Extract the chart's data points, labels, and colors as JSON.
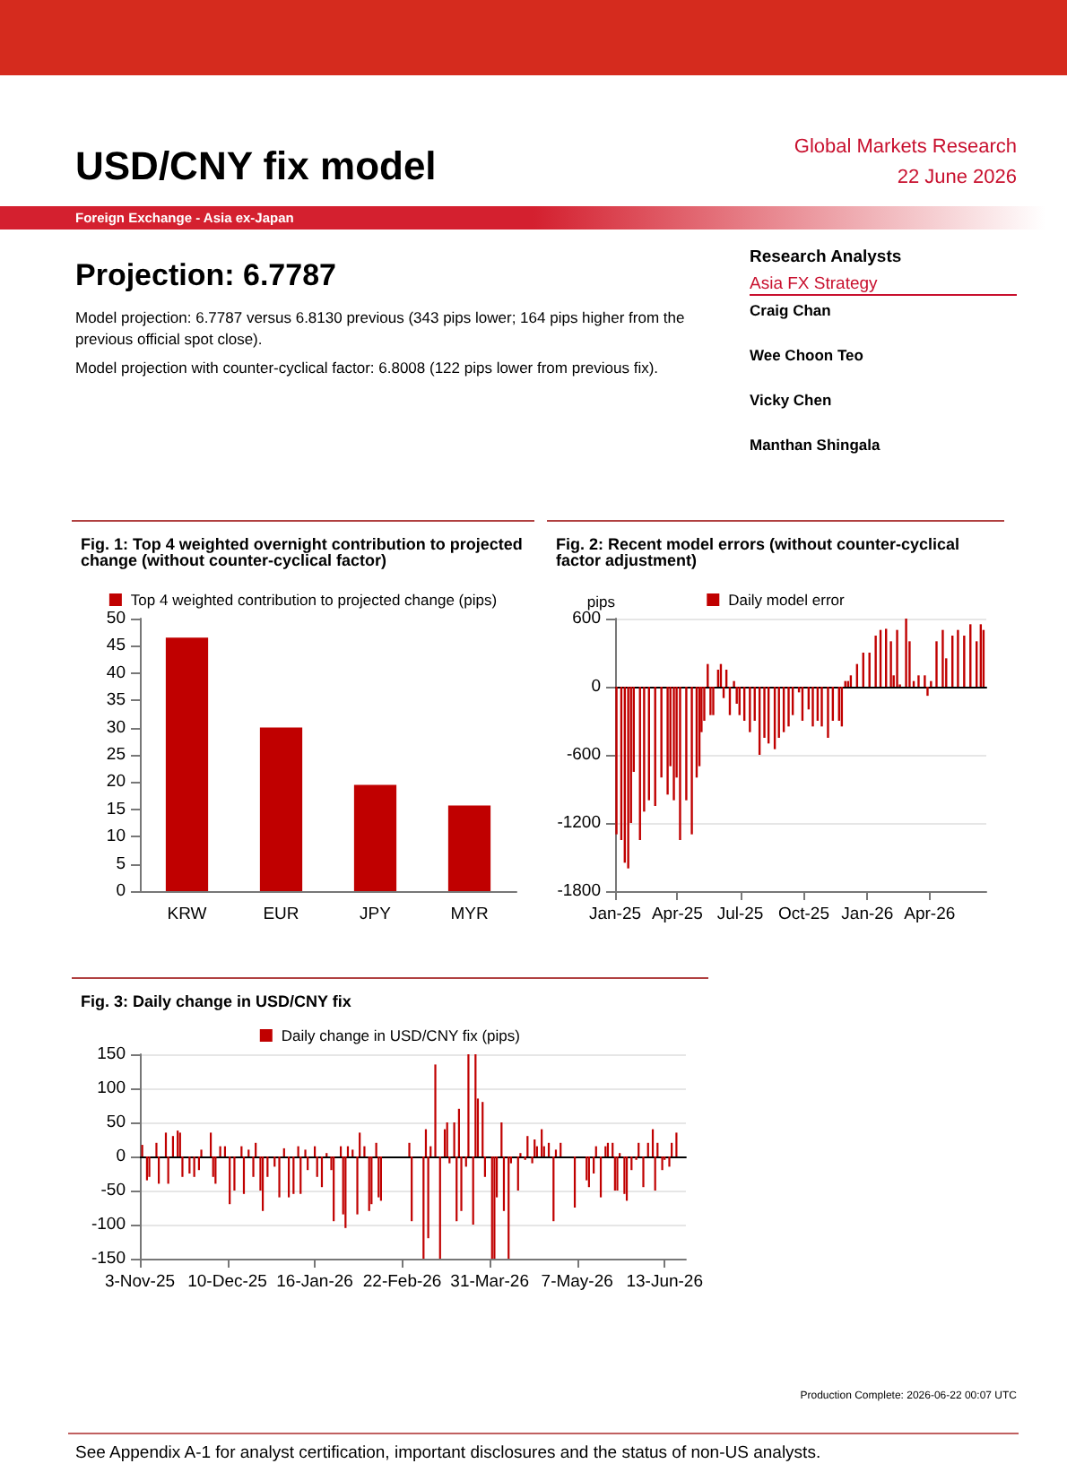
{
  "chart_data": [
    {
      "type": "other",
      "title": "USD/CNY fix model",
      "annotations": [
        "Global Markets Research",
        "22 June 2026",
        "Foreign Exchange - Asia ex-Japan",
        "Projection: 6.7787",
        "Model projection: 6.7787 versus 6.8130 previous (343 pips lower; 164 pips higher from the previous official spot close).",
        "Model projection with counter-cyclical factor: 6.8008 (122 pips lower from previous fix).",
        "Research Analysts",
        "Asia FX Strategy",
        "Craig Chan",
        "Wee Choon Teo",
        "Vicky Chen",
        "Manthan Shingala",
        "Production Complete: 2026-06-22 00:07 UTC",
        "See Appendix A-1 for analyst certification, important disclosures and the status of non-US analysts."
      ]
    },
    {
      "type": "bar",
      "title": "Fig. 1: Top 4 weighted overnight contribution to projected change (without counter-cyclical factor)",
      "categories": [
        "KRW",
        "EUR",
        "JPY",
        "MYR"
      ],
      "series": [
        {
          "name": "Top 4 weighted contribution to projected change (pips)",
          "color": "#c00000",
          "values": [
            46.5,
            30,
            19.5,
            15.7
          ]
        }
      ],
      "ylim": [
        0,
        50
      ],
      "yticks": [
        0,
        5,
        10,
        15,
        20,
        25,
        30,
        35,
        40,
        45,
        50
      ],
      "grid": false,
      "legend": "top"
    },
    {
      "type": "bar",
      "title": "Fig. 2: Recent model errors (without counter-cyclical factor adjustment)",
      "ylabel": "pips",
      "x": [
        "2025-01-03",
        "2025-01-10",
        "2025-01-15",
        "2025-01-20",
        "2025-01-24",
        "2025-01-28",
        "2025-02-06",
        "2025-02-12",
        "2025-02-19",
        "2025-02-28",
        "2025-03-09",
        "2025-03-18",
        "2025-03-22",
        "2025-03-27",
        "2025-03-31",
        "2025-04-05",
        "2025-04-14",
        "2025-04-22",
        "2025-04-29",
        "2025-05-03",
        "2025-05-06",
        "2025-05-10",
        "2025-05-15",
        "2025-05-19",
        "2025-05-23",
        "2025-05-30",
        "2025-06-03",
        "2025-06-07",
        "2025-06-11",
        "2025-06-16",
        "2025-06-22",
        "2025-06-26",
        "2025-06-30",
        "2025-07-07",
        "2025-07-15",
        "2025-07-22",
        "2025-07-29",
        "2025-08-05",
        "2025-08-11",
        "2025-08-20",
        "2025-08-26",
        "2025-09-02",
        "2025-09-09",
        "2025-09-15",
        "2025-09-24",
        "2025-09-29",
        "2025-10-08",
        "2025-10-14",
        "2025-10-21",
        "2025-10-27",
        "2025-11-05",
        "2025-11-12",
        "2025-11-21",
        "2025-11-25",
        "2025-11-30",
        "2025-12-04",
        "2025-12-08",
        "2025-12-17",
        "2025-12-26",
        "2026-01-04",
        "2026-01-13",
        "2026-01-20",
        "2026-01-28",
        "2026-02-04",
        "2026-02-08",
        "2026-02-13",
        "2026-02-17",
        "2026-02-26",
        "2026-03-03",
        "2026-03-09",
        "2026-03-16",
        "2026-03-25",
        "2026-03-29",
        "2026-04-03",
        "2026-04-11",
        "2026-04-20",
        "2026-04-25",
        "2026-05-04",
        "2026-05-12",
        "2026-05-21",
        "2026-05-30",
        "2026-06-08",
        "2026-06-14",
        "2026-06-18"
      ],
      "series": [
        {
          "name": "Daily model error",
          "color": "#c00000",
          "values": [
            -1300,
            -1350,
            -1550,
            -1600,
            -1200,
            -750,
            -1350,
            -1100,
            -1000,
            -1050,
            -800,
            -950,
            -700,
            -1000,
            -800,
            -1350,
            -1000,
            -1300,
            -800,
            -700,
            -400,
            -300,
            200,
            -250,
            -250,
            150,
            200,
            -100,
            150,
            -250,
            50,
            -150,
            -250,
            -300,
            -400,
            -300,
            -600,
            -450,
            -500,
            -550,
            -450,
            -400,
            -350,
            -250,
            -50,
            -300,
            -200,
            -350,
            -300,
            -350,
            -450,
            -300,
            -300,
            -350,
            50,
            50,
            100,
            200,
            300,
            300,
            450,
            500,
            510,
            400,
            100,
            500,
            20,
            600,
            400,
            50,
            100,
            100,
            -80,
            50,
            400,
            500,
            250,
            450,
            500,
            450,
            550,
            400,
            550,
            500
          ]
        }
      ],
      "xlim": [
        "2025-01-01",
        "2026-06-22"
      ],
      "xticks": [
        {
          "value": "2025-01-01",
          "label": "Jan-25"
        },
        {
          "value": "2025-04-01",
          "label": "Apr-25"
        },
        {
          "value": "2025-07-01",
          "label": "Jul-25"
        },
        {
          "value": "2025-10-01",
          "label": "Oct-25"
        },
        {
          "value": "2026-01-01",
          "label": "Jan-26"
        },
        {
          "value": "2026-04-01",
          "label": "Apr-26"
        }
      ],
      "ylim": [
        -1800,
        600
      ],
      "yticks": [
        -1800,
        -1200,
        -600,
        0,
        600
      ],
      "grid": "y",
      "legend": "top"
    },
    {
      "type": "bar",
      "title": "Fig. 3: Daily change in USD/CNY fix",
      "x": [
        "2025-11-04",
        "2025-11-06",
        "2025-11-07",
        "2025-11-10",
        "2025-11-11",
        "2025-11-14",
        "2025-11-15",
        "2025-11-17",
        "2025-11-19",
        "2025-11-20",
        "2025-11-21",
        "2025-11-24",
        "2025-11-26",
        "2025-11-28",
        "2025-11-29",
        "2025-12-03",
        "2025-12-04",
        "2025-12-05",
        "2025-12-07",
        "2025-12-09",
        "2025-12-11",
        "2025-12-13",
        "2025-12-16",
        "2025-12-17",
        "2025-12-19",
        "2025-12-21",
        "2025-12-22",
        "2025-12-24",
        "2025-12-25",
        "2025-12-27",
        "2025-12-30",
        "2026-01-01",
        "2026-01-03",
        "2026-01-05",
        "2026-01-07",
        "2026-01-09",
        "2026-01-10",
        "2026-01-12",
        "2026-01-13",
        "2026-01-16",
        "2026-01-17",
        "2026-01-19",
        "2026-01-21",
        "2026-01-23",
        "2026-01-24",
        "2026-01-27",
        "2026-01-28",
        "2026-01-29",
        "2026-01-30",
        "2026-02-01",
        "2026-02-03",
        "2026-02-04",
        "2026-02-06",
        "2026-02-08",
        "2026-02-09",
        "2026-02-11",
        "2026-02-12",
        "2026-02-13",
        "2026-02-25",
        "2026-02-26",
        "2026-03-03",
        "2026-03-04",
        "2026-03-05",
        "2026-03-06",
        "2026-03-08",
        "2026-03-10",
        "2026-03-12",
        "2026-03-13",
        "2026-03-14",
        "2026-03-16",
        "2026-03-17",
        "2026-03-18",
        "2026-03-19",
        "2026-03-21",
        "2026-03-22",
        "2026-03-24",
        "2026-03-25",
        "2026-03-26",
        "2026-03-28",
        "2026-03-29",
        "2026-04-01",
        "2026-04-02",
        "2026-04-03",
        "2026-04-05",
        "2026-04-06",
        "2026-04-08",
        "2026-04-09",
        "2026-04-12",
        "2026-04-13",
        "2026-04-15",
        "2026-04-16",
        "2026-04-18",
        "2026-04-19",
        "2026-04-20",
        "2026-04-22",
        "2026-04-23",
        "2026-04-25",
        "2026-04-27",
        "2026-04-28",
        "2026-04-30",
        "2026-05-06",
        "2026-05-11",
        "2026-05-12",
        "2026-05-14",
        "2026-05-15",
        "2026-05-17",
        "2026-05-19",
        "2026-05-20",
        "2026-05-22",
        "2026-05-23",
        "2026-05-24",
        "2026-05-25",
        "2026-05-27",
        "2026-05-28",
        "2026-05-30",
        "2026-06-01",
        "2026-06-02",
        "2026-06-04",
        "2026-06-06",
        "2026-06-08",
        "2026-06-09",
        "2026-06-10",
        "2026-06-12",
        "2026-06-13",
        "2026-06-15",
        "2026-06-16",
        "2026-06-18"
      ],
      "series": [
        {
          "name": "Daily change in USD/CNY fix (pips)",
          "color": "#c00000",
          "values": [
            17,
            -35,
            -30,
            20,
            -40,
            35,
            -40,
            30,
            38,
            35,
            -30,
            -25,
            -30,
            -20,
            10,
            35,
            -30,
            -40,
            15,
            15,
            -70,
            -50,
            15,
            -55,
            10,
            -30,
            20,
            -50,
            -80,
            -30,
            -15,
            -60,
            12,
            -60,
            -55,
            15,
            -55,
            10,
            -20,
            15,
            -30,
            -45,
            5,
            -20,
            -95,
            15,
            -85,
            -105,
            15,
            10,
            -85,
            35,
            15,
            -80,
            -70,
            20,
            -60,
            -65,
            20,
            -95,
            -150,
            40,
            -120,
            15,
            135,
            -150,
            40,
            50,
            -10,
            50,
            -95,
            70,
            -80,
            -15,
            150,
            -100,
            150,
            85,
            80,
            -30,
            -150,
            -150,
            -60,
            50,
            -80,
            -150,
            -10,
            -50,
            5,
            -5,
            30,
            -10,
            25,
            15,
            40,
            15,
            20,
            -95,
            10,
            20,
            -75,
            -35,
            -45,
            -25,
            15,
            -60,
            15,
            20,
            20,
            -50,
            -50,
            5,
            -55,
            -65,
            -20,
            -5,
            20,
            -45,
            20,
            40,
            -50,
            20,
            -20,
            -5,
            -15,
            20,
            35
          ]
        }
      ],
      "xlim": [
        "2025-11-03",
        "2026-06-22"
      ],
      "xticks": [
        {
          "value": "2025-11-03",
          "label": "3-Nov-25"
        },
        {
          "value": "2025-12-10",
          "label": "10-Dec-25"
        },
        {
          "value": "2026-01-16",
          "label": "16-Jan-26"
        },
        {
          "value": "2026-02-22",
          "label": "22-Feb-26"
        },
        {
          "value": "2026-03-31",
          "label": "31-Mar-26"
        },
        {
          "value": "2026-05-07",
          "label": "7-May-26"
        },
        {
          "value": "2026-06-13",
          "label": "13-Jun-26"
        }
      ],
      "ylim": [
        -150,
        150
      ],
      "yticks": [
        -150,
        -100,
        -50,
        0,
        50,
        100,
        150
      ],
      "grid": "y",
      "legend": "top"
    }
  ]
}
